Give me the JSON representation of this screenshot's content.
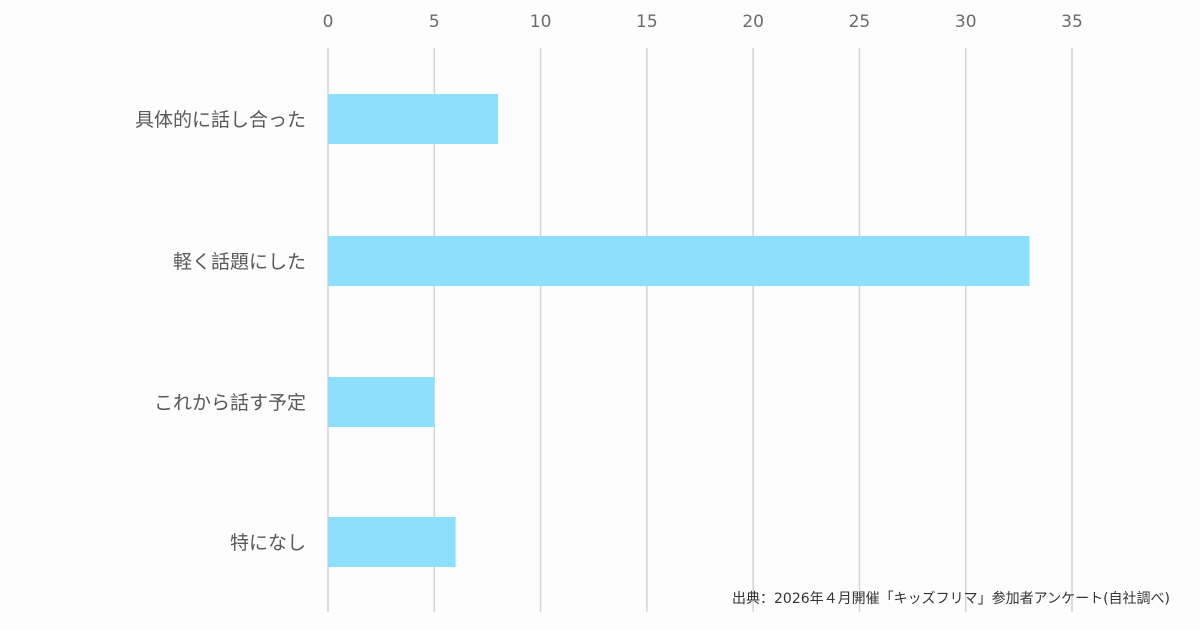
{
  "chart_data": {
    "type": "bar",
    "orientation": "horizontal",
    "categories": [
      "具体的に話し合った",
      "軽く話題にした",
      "これから話す予定",
      "特になし"
    ],
    "values": [
      8,
      33,
      5,
      6
    ],
    "xlim": [
      0,
      35
    ],
    "xticks": [
      0,
      5,
      10,
      15,
      20,
      25,
      30,
      35
    ],
    "x_axis_position": "top",
    "grid": true,
    "legend": "none",
    "bar_color": "#8ddffb",
    "grid_color": "#d4d4d4"
  },
  "source": "出典：2026年４月開催「キッズフリマ」参加者アンケート(自社調べ)"
}
